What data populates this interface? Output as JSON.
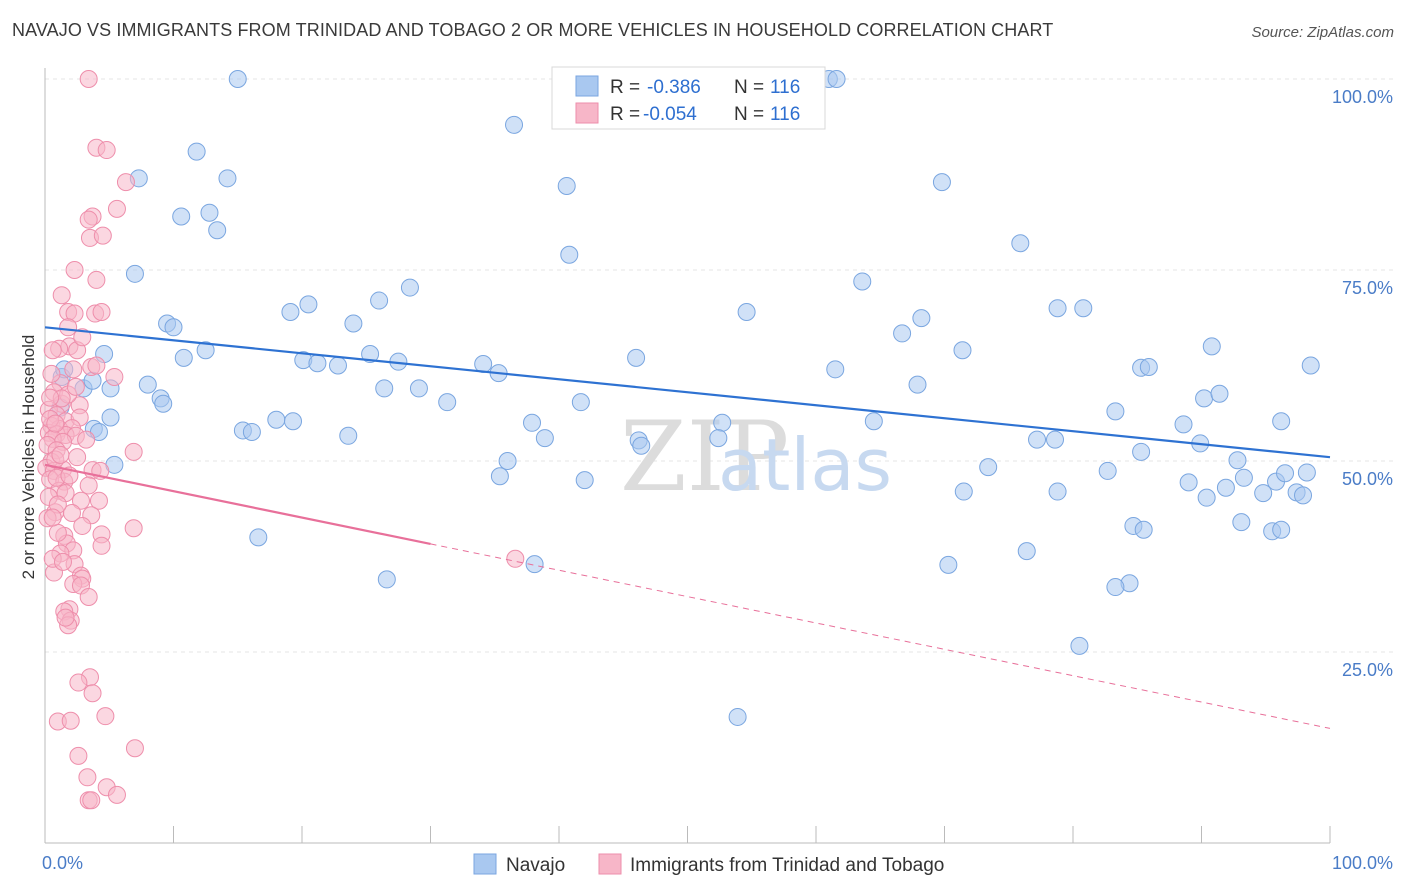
{
  "title": "NAVAJO VS IMMIGRANTS FROM TRINIDAD AND TOBAGO 2 OR MORE VEHICLES IN HOUSEHOLD CORRELATION CHART",
  "source": "Source: ZipAtlas.com",
  "watermark": {
    "zip": "ZIP",
    "atlas": "atlas"
  },
  "colors": {
    "navajo_fill": "#a9c8f0",
    "navajo_stroke": "#7aa6e0",
    "navajo_line": "#2e72d2",
    "trinidad_fill": "#f7b6c8",
    "trinidad_stroke": "#ee8eab",
    "trinidad_line": "#e8709a",
    "grid": "#e4e4e4",
    "tick_text": "#4a7cc7"
  },
  "legend_top": {
    "rows": [
      {
        "r_label": "R =",
        "r_value": "-0.386",
        "n_label": "N =",
        "n_value": "116"
      },
      {
        "r_label": "R =",
        "r_value": "-0.054",
        "n_label": "N =",
        "n_value": "116"
      }
    ]
  },
  "chart_data": {
    "type": "scatter",
    "title": "NAVAJO VS IMMIGRANTS FROM TRINIDAD AND TOBAGO 2 OR MORE VEHICLES IN HOUSEHOLD CORRELATION CHART",
    "xlabel": "",
    "ylabel": "2 or more Vehicles in Household",
    "xlim": [
      0,
      100
    ],
    "ylim": [
      0,
      100
    ],
    "x_tick_labels": [
      "0.0%",
      "100.0%"
    ],
    "y_ticks": [
      {
        "value": 100,
        "label": "100.0%"
      },
      {
        "value": 75,
        "label": "75.0%"
      },
      {
        "value": 50,
        "label": "50.0%"
      },
      {
        "value": 25,
        "label": "25.0%"
      }
    ],
    "grid": true,
    "legend_position": "bottom",
    "series": [
      {
        "name": "Navajo",
        "color": "#a9c8f0",
        "trend": {
          "x0": 0,
          "y0": 67.5,
          "x1": 100,
          "y1": 50.5,
          "solid_until": 100
        },
        "points": [
          [
            15,
            100
          ],
          [
            61,
            100
          ],
          [
            61.6,
            100
          ],
          [
            36.5,
            94
          ],
          [
            11.8,
            90.5
          ],
          [
            14.2,
            87
          ],
          [
            7.3,
            87
          ],
          [
            40.6,
            86
          ],
          [
            69.8,
            86.5
          ],
          [
            12.8,
            82.5
          ],
          [
            13.4,
            80.2
          ],
          [
            10.6,
            82
          ],
          [
            40.8,
            77
          ],
          [
            75.9,
            78.5
          ],
          [
            7,
            74.5
          ],
          [
            63.6,
            73.5
          ],
          [
            28.4,
            72.7
          ],
          [
            26,
            71
          ],
          [
            20.5,
            70.5
          ],
          [
            19.1,
            69.5
          ],
          [
            54.6,
            69.5
          ],
          [
            80.8,
            70
          ],
          [
            78.8,
            70
          ],
          [
            9.5,
            68
          ],
          [
            10,
            67.5
          ],
          [
            24,
            68
          ],
          [
            68.2,
            68.7
          ],
          [
            66.7,
            66.7
          ],
          [
            90.8,
            65
          ],
          [
            12.5,
            64.5
          ],
          [
            4.6,
            64
          ],
          [
            10.8,
            63.5
          ],
          [
            25.3,
            64
          ],
          [
            46,
            63.5
          ],
          [
            98.5,
            62.5
          ],
          [
            20.1,
            63.2
          ],
          [
            21.2,
            62.8
          ],
          [
            27.5,
            63
          ],
          [
            22.8,
            62.5
          ],
          [
            34.1,
            62.7
          ],
          [
            35.3,
            61.5
          ],
          [
            61.5,
            62
          ],
          [
            85.3,
            62.2
          ],
          [
            85.9,
            62.3
          ],
          [
            71.4,
            64.5
          ],
          [
            1.3,
            61
          ],
          [
            8,
            60
          ],
          [
            3,
            59.5
          ],
          [
            5.1,
            59.5
          ],
          [
            26.4,
            59.5
          ],
          [
            29.1,
            59.5
          ],
          [
            67.9,
            60
          ],
          [
            9,
            58.2
          ],
          [
            90.2,
            58.2
          ],
          [
            31.3,
            57.7
          ],
          [
            41.7,
            57.7
          ],
          [
            1.2,
            57
          ],
          [
            9.2,
            57.5
          ],
          [
            5.1,
            55.7
          ],
          [
            83.3,
            56.5
          ],
          [
            91.4,
            58.8
          ],
          [
            15.4,
            54
          ],
          [
            16.1,
            53.8
          ],
          [
            18,
            55.4
          ],
          [
            19.3,
            55.2
          ],
          [
            37.9,
            55
          ],
          [
            52.7,
            55
          ],
          [
            64.5,
            55.2
          ],
          [
            88.6,
            54.8
          ],
          [
            96.2,
            55.2
          ],
          [
            3.8,
            54.2
          ],
          [
            23.6,
            53.3
          ],
          [
            38.9,
            53
          ],
          [
            46.2,
            52.7
          ],
          [
            46.4,
            52
          ],
          [
            52.4,
            53
          ],
          [
            77.2,
            52.8
          ],
          [
            78.6,
            52.8
          ],
          [
            89.9,
            52.3
          ],
          [
            85.3,
            51.2
          ],
          [
            4.2,
            53.8
          ],
          [
            5.4,
            49.5
          ],
          [
            36,
            50
          ],
          [
            35.4,
            48
          ],
          [
            73.4,
            49.2
          ],
          [
            82.7,
            48.7
          ],
          [
            92.8,
            50.1
          ],
          [
            93.3,
            47.8
          ],
          [
            95.8,
            47.3
          ],
          [
            96.5,
            48.4
          ],
          [
            98.2,
            48.5
          ],
          [
            91.9,
            46.5
          ],
          [
            89,
            47.2
          ],
          [
            94.8,
            45.8
          ],
          [
            97.4,
            45.9
          ],
          [
            97.9,
            45.5
          ],
          [
            71.5,
            46
          ],
          [
            42,
            47.5
          ],
          [
            78.8,
            46
          ],
          [
            90.4,
            45.2
          ],
          [
            93.1,
            42
          ],
          [
            16.6,
            40
          ],
          [
            84.7,
            41.5
          ],
          [
            85.5,
            41
          ],
          [
            95.5,
            40.8
          ],
          [
            96.2,
            41
          ],
          [
            76.4,
            38.2
          ],
          [
            38.1,
            36.5
          ],
          [
            70.3,
            36.4
          ],
          [
            26.6,
            34.5
          ],
          [
            84.4,
            34
          ],
          [
            83.3,
            33.5
          ],
          [
            80.5,
            25.8
          ],
          [
            53.9,
            16.5
          ],
          [
            3.7,
            60.5
          ],
          [
            1.5,
            62
          ]
        ]
      },
      {
        "name": "Immigrants from Trinidad and Tobago",
        "color": "#f7b6c8",
        "trend": {
          "x0": 0,
          "y0": 49.5,
          "x1": 100,
          "y1": 15,
          "solid_until": 30
        },
        "points": [
          [
            3.4,
            100
          ],
          [
            4,
            91
          ],
          [
            4.8,
            90.7
          ],
          [
            6.3,
            86.5
          ],
          [
            3.7,
            82
          ],
          [
            3.4,
            81.6
          ],
          [
            5.6,
            83
          ],
          [
            3.5,
            79.2
          ],
          [
            4.5,
            79.5
          ],
          [
            2.3,
            75
          ],
          [
            4,
            73.7
          ],
          [
            3.9,
            69.3
          ],
          [
            4.4,
            69.5
          ],
          [
            1.8,
            69.5
          ],
          [
            2.3,
            69.3
          ],
          [
            1.8,
            67.5
          ],
          [
            1.9,
            65
          ],
          [
            2.5,
            64.5
          ],
          [
            1.1,
            64.7
          ],
          [
            3.6,
            62.3
          ],
          [
            4,
            62.5
          ],
          [
            2.2,
            62
          ],
          [
            5.4,
            61
          ],
          [
            1.2,
            60.2
          ],
          [
            0.7,
            59
          ],
          [
            1.3,
            57.5
          ],
          [
            2.7,
            57.3
          ],
          [
            0.3,
            56.7
          ],
          [
            0.9,
            56
          ],
          [
            1.6,
            55.2
          ],
          [
            2.7,
            55.7
          ],
          [
            0.5,
            54.6
          ],
          [
            1.1,
            54.2
          ],
          [
            2.1,
            54.3
          ],
          [
            0.3,
            53.7
          ],
          [
            0.9,
            53.5
          ],
          [
            1.6,
            53.4
          ],
          [
            2.4,
            53.3
          ],
          [
            0.6,
            52.9
          ],
          [
            1.4,
            52.5
          ],
          [
            0.2,
            52.1
          ],
          [
            0.9,
            51.4
          ],
          [
            3.2,
            52.8
          ],
          [
            6.9,
            51.2
          ],
          [
            0.5,
            49.9
          ],
          [
            0.1,
            49.1
          ],
          [
            0.7,
            48.7
          ],
          [
            1.4,
            48.9
          ],
          [
            3.7,
            48.8
          ],
          [
            4.3,
            48.7
          ],
          [
            0.4,
            47.6
          ],
          [
            1.5,
            47.3
          ],
          [
            3.4,
            46.8
          ],
          [
            1.1,
            46.1
          ],
          [
            1.6,
            45.8
          ],
          [
            2.8,
            44.8
          ],
          [
            4.2,
            44.8
          ],
          [
            0.8,
            43.3
          ],
          [
            2.1,
            43.2
          ],
          [
            3.6,
            42.9
          ],
          [
            6.9,
            41.2
          ],
          [
            1.5,
            40.2
          ],
          [
            4.4,
            40.4
          ],
          [
            1.7,
            39.2
          ],
          [
            2.2,
            38.3
          ],
          [
            4.4,
            38.9
          ],
          [
            1.2,
            37.9
          ],
          [
            2.3,
            36.5
          ],
          [
            0.7,
            35.4
          ],
          [
            2.8,
            35
          ],
          [
            2.9,
            34.6
          ],
          [
            2.2,
            33.9
          ],
          [
            2.8,
            33.7
          ],
          [
            3.4,
            32.2
          ],
          [
            1.9,
            30.6
          ],
          [
            1.5,
            30.3
          ],
          [
            2,
            29.1
          ],
          [
            1.8,
            28.5
          ],
          [
            1.6,
            29.5
          ],
          [
            36.6,
            37.2
          ],
          [
            3.5,
            21.7
          ],
          [
            2.6,
            21
          ],
          [
            3.7,
            19.6
          ],
          [
            1,
            15.9
          ],
          [
            2,
            16
          ],
          [
            4.7,
            16.6
          ],
          [
            7,
            12.4
          ],
          [
            2.6,
            11.4
          ],
          [
            3.3,
            8.6
          ],
          [
            4.8,
            7.3
          ],
          [
            3.4,
            5.6
          ],
          [
            3.6,
            5.6
          ],
          [
            5.6,
            6.3
          ],
          [
            0.8,
            50.2
          ],
          [
            1.2,
            50.8
          ],
          [
            2.5,
            50.5
          ],
          [
            0.4,
            55.5
          ],
          [
            1.8,
            58.7
          ],
          [
            0.5,
            61.4
          ],
          [
            0.6,
            64.5
          ],
          [
            2.9,
            66.2
          ],
          [
            1.3,
            71.7
          ],
          [
            0.3,
            45.3
          ],
          [
            0.2,
            42.5
          ],
          [
            1,
            40.6
          ],
          [
            0.6,
            37.2
          ],
          [
            0.9,
            47.8
          ],
          [
            1.3,
            58.2
          ],
          [
            2.4,
            59.7
          ],
          [
            1,
            44.3
          ],
          [
            0.4,
            58.3
          ],
          [
            2.9,
            41.5
          ],
          [
            1.9,
            48.1
          ],
          [
            0.6,
            42.6
          ],
          [
            1.4,
            36.8
          ],
          [
            0.8,
            54.9
          ]
        ]
      }
    ]
  }
}
